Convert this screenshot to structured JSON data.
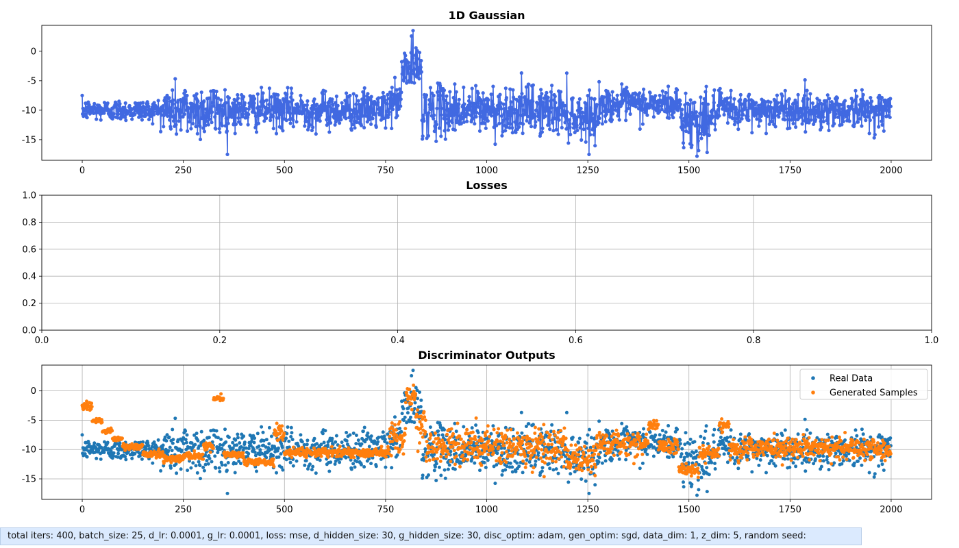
{
  "footer_text": "total iters: 400,  batch_size: 25,  d_lr: 0.0001,  g_lr: 0.0001,  loss: mse,  d_hidden_size: 30,  g_hidden_size: 30,  disc_optim: adam,  gen_optim: sgd,  data_dim: 1,  z_dim: 5,  random seed:",
  "colors": {
    "gaussian_line": "#4169e1",
    "real": "#1f77b4",
    "generated": "#ff7f0e",
    "grid": "#b0b0b0",
    "legend_border": "#cccccc"
  },
  "chart_data": [
    {
      "type": "line",
      "title": "1D Gaussian",
      "xlabel": "",
      "ylabel": "",
      "xlim": [
        -100,
        2100
      ],
      "ylim": [
        -18.5,
        4.4
      ],
      "xticks": [
        0,
        250,
        500,
        750,
        1000,
        1250,
        1500,
        1750,
        2000
      ],
      "yticks": [
        0,
        -5,
        -10,
        -15
      ],
      "grid": false,
      "markers": true,
      "series": [
        {
          "n": 2000,
          "base_mean": -10,
          "segments": [
            {
              "from": 0,
              "to": 200,
              "std": 0.9
            },
            {
              "from": 200,
              "to": 360,
              "std": 2.3
            },
            {
              "from": 360,
              "to": 760,
              "std": 1.6
            },
            {
              "from": 760,
              "to": 790,
              "std": 1.6,
              "mean": -8.5
            },
            {
              "from": 790,
              "to": 840,
              "std": 2.0,
              "mean": -3
            },
            {
              "from": 840,
              "to": 1200,
              "std": 2.1
            },
            {
              "from": 1200,
              "to": 1280,
              "std": 2.0,
              "mean": -11
            },
            {
              "from": 1280,
              "to": 1480,
              "std": 1.4,
              "mean": -9
            },
            {
              "from": 1480,
              "to": 1560,
              "std": 2.3,
              "mean": -11.5
            },
            {
              "from": 1560,
              "to": 2000,
              "std": 1.5
            }
          ],
          "extremes": {
            "max": 3.5,
            "max_at": 818,
            "min": -17.8,
            "min_at": 1520
          }
        }
      ]
    },
    {
      "type": "line",
      "title": "Losses",
      "xlabel": "",
      "ylabel": "",
      "xlim": [
        0,
        1
      ],
      "ylim": [
        0,
        1
      ],
      "xticks": [
        0.0,
        0.2,
        0.4,
        0.6,
        0.8,
        1.0
      ],
      "yticks": [
        0.0,
        0.2,
        0.4,
        0.6,
        0.8,
        1.0
      ],
      "grid": true,
      "series": []
    },
    {
      "type": "scatter",
      "title": "Discriminator Outputs",
      "xlabel": "",
      "ylabel": "",
      "xlim": [
        -100,
        2100
      ],
      "ylim": [
        -18.5,
        4.4
      ],
      "xticks": [
        0,
        250,
        500,
        750,
        1000,
        1250,
        1500,
        1750,
        2000
      ],
      "yticks": [
        0,
        -5,
        -10,
        -15
      ],
      "grid": true,
      "legend": "top-right",
      "series": [
        {
          "name": "Real Data",
          "source": "same values as 1D Gaussian series"
        },
        {
          "name": "Generated Samples",
          "n": 2000,
          "levels": [
            {
              "from": 0,
              "to": 25,
              "y": -2.5,
              "jitter": 0.4
            },
            {
              "from": 25,
              "to": 50,
              "y": -5.2,
              "jitter": 0.2
            },
            {
              "from": 50,
              "to": 75,
              "y": -6.8,
              "jitter": 0.2
            },
            {
              "from": 75,
              "to": 100,
              "y": -8.2,
              "jitter": 0.2
            },
            {
              "from": 100,
              "to": 150,
              "y": -9.5,
              "jitter": 0.3
            },
            {
              "from": 150,
              "to": 200,
              "y": -10.8,
              "jitter": 0.3
            },
            {
              "from": 200,
              "to": 250,
              "y": -11.5,
              "jitter": 0.3
            },
            {
              "from": 250,
              "to": 300,
              "y": -11.0,
              "jitter": 0.3
            },
            {
              "from": 300,
              "to": 325,
              "y": -9.5,
              "jitter": 0.3
            },
            {
              "from": 325,
              "to": 350,
              "y": -1.2,
              "jitter": 0.3
            },
            {
              "from": 350,
              "to": 400,
              "y": -10.8,
              "jitter": 0.3
            },
            {
              "from": 400,
              "to": 475,
              "y": -12.2,
              "jitter": 0.3
            },
            {
              "from": 475,
              "to": 500,
              "y": -7.0,
              "jitter": 1.0
            },
            {
              "from": 500,
              "to": 760,
              "y": -10.5,
              "jitter": 0.4
            },
            {
              "from": 760,
              "to": 800,
              "y": -8.0,
              "jitter": 1.5
            },
            {
              "from": 800,
              "to": 825,
              "y": -1.0,
              "jitter": 1.0
            },
            {
              "from": 825,
              "to": 850,
              "y": -5.5,
              "jitter": 2.0
            },
            {
              "from": 850,
              "to": 1200,
              "y": -9.5,
              "jitter": 1.6
            },
            {
              "from": 1200,
              "to": 1270,
              "y": -12.0,
              "jitter": 1.3
            },
            {
              "from": 1270,
              "to": 1400,
              "y": -9.0,
              "jitter": 1.0
            },
            {
              "from": 1400,
              "to": 1425,
              "y": -5.8,
              "jitter": 0.4
            },
            {
              "from": 1425,
              "to": 1475,
              "y": -9.5,
              "jitter": 0.6
            },
            {
              "from": 1475,
              "to": 1525,
              "y": -13.5,
              "jitter": 0.5
            },
            {
              "from": 1525,
              "to": 1575,
              "y": -10.5,
              "jitter": 0.6
            },
            {
              "from": 1575,
              "to": 1600,
              "y": -5.8,
              "jitter": 0.5
            },
            {
              "from": 1600,
              "to": 2000,
              "y": -9.8,
              "jitter": 0.9
            }
          ]
        }
      ]
    }
  ]
}
